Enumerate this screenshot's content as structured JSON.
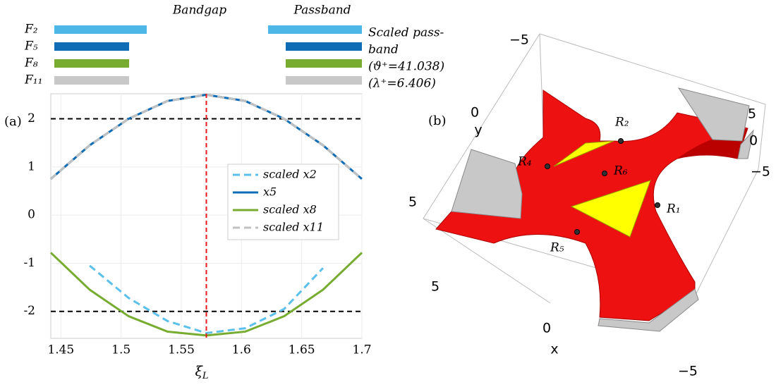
{
  "chart_data": [
    {
      "type": "line",
      "panel_label": "(a)",
      "x": [
        1.4416,
        1.4739,
        1.5062,
        1.5385,
        1.5708,
        1.6031,
        1.6354,
        1.6677,
        1.7
      ],
      "series": [
        {
          "name": "scaled x2",
          "color": "#5bc0eb",
          "style": "dashed",
          "values": [
            0.75,
            1.45,
            2.0,
            2.37,
            2.5,
            2.37,
            2.0,
            1.45,
            0.75
          ]
        },
        {
          "color": "#5bc0eb",
          "style": "dashed",
          "values": [
            null,
            -1.05,
            -1.72,
            -2.2,
            -2.45,
            -2.35,
            -1.95,
            -1.1,
            null
          ]
        },
        {
          "name": "x5",
          "color": "#0f6db5",
          "style": "solid",
          "values": [
            0.75,
            1.45,
            2.0,
            2.37,
            2.5,
            2.37,
            2.0,
            1.45,
            0.75
          ]
        },
        {
          "name": "scaled x8",
          "color": "#77ac30",
          "style": "solid",
          "values": [
            -0.78,
            -1.55,
            -2.1,
            -2.42,
            -2.5,
            -2.42,
            -2.1,
            -1.55,
            -0.78
          ]
        },
        {
          "name": "scaled x11",
          "color": "#c0c0c0",
          "style": "dashed",
          "values": [
            0.75,
            1.45,
            2.0,
            2.37,
            2.5,
            2.37,
            2.0,
            1.45,
            0.75
          ]
        }
      ],
      "xlim": [
        1.4416,
        1.7
      ],
      "ylim": [
        -2.56,
        2.52
      ],
      "xticks": [
        1.45,
        1.5,
        1.55,
        1.6,
        1.65,
        1.7
      ],
      "yticks": [
        -2,
        -1,
        0,
        1,
        2
      ],
      "xlabel": "ξ",
      "xlabel_subscript": "L",
      "grid": true,
      "reference_lines": {
        "y": [
          2,
          -2
        ],
        "y_color": "#000000",
        "x": 1.5708,
        "x_color": "#e8191b"
      },
      "band_legend": {
        "bandgap_label": "Bandgap",
        "passband_label": "Passband",
        "note": [
          "Scaled pass-",
          "band",
          "(ϑ⁺=41.038)",
          "(λ⁺=6.406)"
        ],
        "rows": [
          {
            "label": "F₂",
            "color": "#4db8e8"
          },
          {
            "label": "F₅",
            "color": "#0f6db5"
          },
          {
            "label": "F₈",
            "color": "#77ac30"
          },
          {
            "label": "F₁₁",
            "color": "#c8c8c8"
          }
        ]
      }
    }
  ],
  "panel_b": {
    "label": "(b)",
    "x_axis": "x",
    "y_axis": "y",
    "x_ticks": [
      "5",
      "0",
      "−5"
    ],
    "y_ticks": [
      "−5",
      "0",
      "5"
    ],
    "z_ticks": [
      "5",
      "0",
      "−5"
    ],
    "points": [
      "R₁",
      "R₂",
      "R₄",
      "R₅",
      "R₆"
    ]
  }
}
